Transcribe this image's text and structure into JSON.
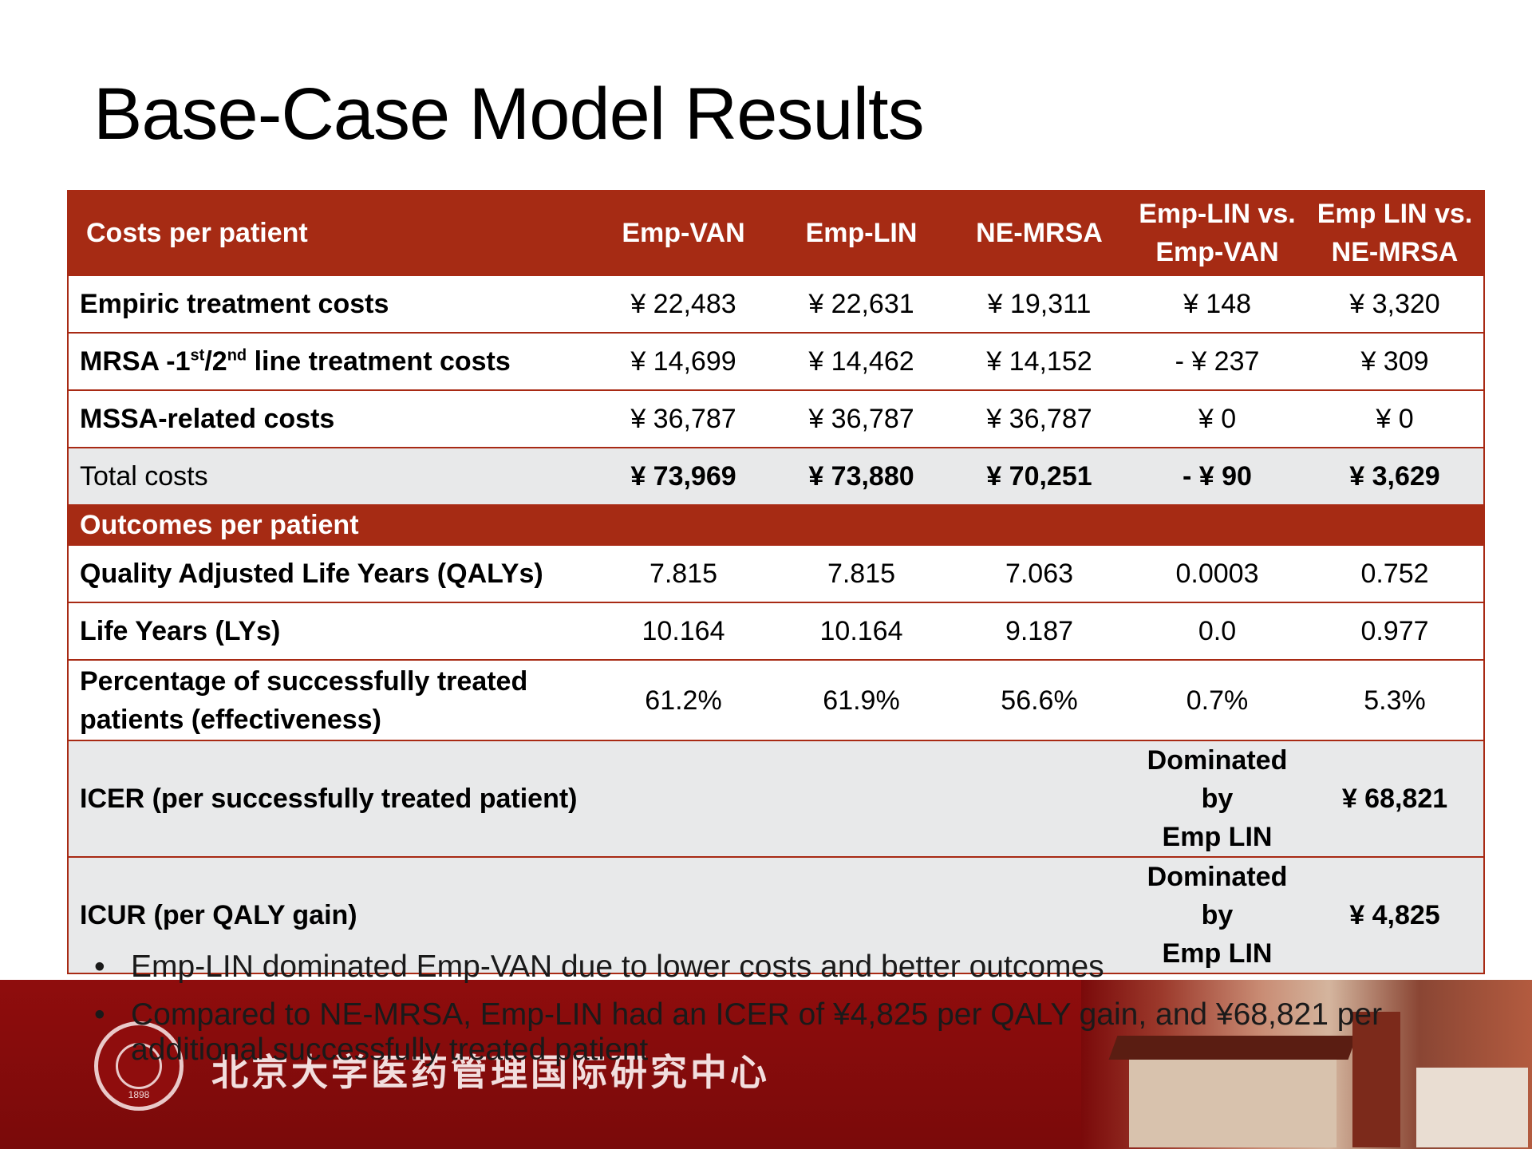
{
  "title": "Base-Case Model Results",
  "table": {
    "header": {
      "first": "Costs per patient",
      "cols": [
        "Emp-VAN",
        "Emp-LIN",
        "NE-MRSA"
      ],
      "cmp1_l1": "Emp-LIN vs.",
      "cmp1_l2": "Emp-VAN",
      "cmp2_l1": "Emp LIN vs.",
      "cmp2_l2": "NE-MRSA"
    },
    "empiric": {
      "label": "Empiric treatment costs",
      "v": [
        "¥ 22,483",
        "¥ 22,631",
        "¥ 19,311",
        "¥ 148",
        "¥ 3,320"
      ]
    },
    "mrsa": {
      "label_a": "MRSA -1",
      "sup1": "st",
      "label_b": "/2",
      "sup2": "nd",
      "label_c": " line treatment costs",
      "v": [
        "¥ 14,699",
        "¥ 14,462",
        "¥ 14,152",
        "- ¥ 237",
        "¥ 309"
      ]
    },
    "mssa": {
      "label": "MSSA-related costs",
      "v": [
        "¥ 36,787",
        "¥ 36,787",
        "¥ 36,787",
        "¥ 0",
        "¥ 0"
      ]
    },
    "total": {
      "label": "Total costs",
      "v": [
        "¥ 73,969",
        "¥ 73,880",
        "¥ 70,251",
        "- ¥ 90",
        "¥ 3,629"
      ]
    },
    "outcomes_header": "Outcomes per patient",
    "qaly": {
      "label": "Quality Adjusted Life Years (QALYs)",
      "v": [
        "7.815",
        "7.815",
        "7.063",
        "0.0003",
        "0.752"
      ]
    },
    "ly": {
      "label": "Life Years (LYs)",
      "v": [
        "10.164",
        "10.164",
        "9.187",
        "0.0",
        "0.977"
      ]
    },
    "pct": {
      "label_l1": "Percentage of successfully treated",
      "label_l2": "patients (effectiveness)",
      "v": [
        "61.2%",
        "61.9%",
        "56.6%",
        "0.7%",
        "5.3%"
      ]
    },
    "icer": {
      "label": "ICER (per successfully treated patient)",
      "dom_l1": "Dominated by",
      "dom_l2": "Emp LIN",
      "value": "¥ 68,821"
    },
    "icur": {
      "label": "ICUR (per QALY gain)",
      "dom_l1": "Dominated by",
      "dom_l2": "Emp LIN",
      "value": "¥ 4,825"
    }
  },
  "bullets": [
    "Emp-LIN dominated Emp-VAN due to lower costs and better outcomes",
    "Compared to NE-MRSA, Emp-LIN had an ICER of ¥4,825 per QALY gain, and ¥68,821 per additional successfully treated patient"
  ],
  "bullet_char": "•",
  "footer": {
    "institute": "北京大学医药管理国际研究中心",
    "logo_year": "1898"
  },
  "colors": {
    "accent": "#a62b14",
    "band": "#8f0d0d",
    "shade": "#e8e9ea"
  }
}
